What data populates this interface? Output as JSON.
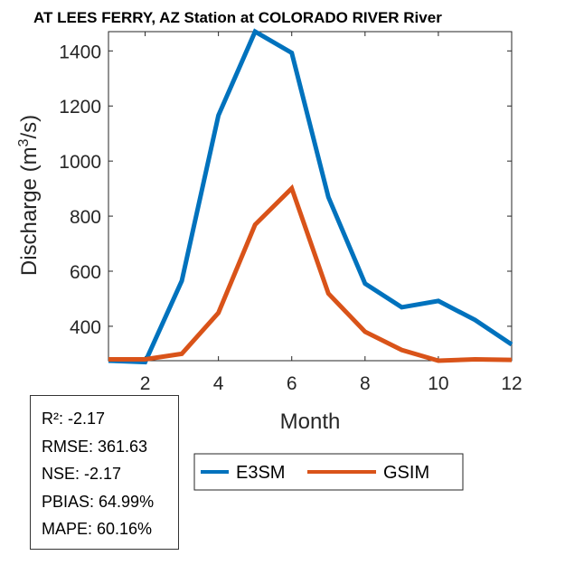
{
  "chart_data": {
    "type": "line",
    "title": "AT LEES FERRY, AZ  Station at  COLORADO RIVER  River",
    "xlabel": "Month",
    "ylabel": "Discharge (m³/s)",
    "ylabel_parts": {
      "pre": "Discharge (m",
      "sup": "3",
      "post": "/s)"
    },
    "x": [
      1,
      2,
      3,
      4,
      5,
      6,
      7,
      8,
      9,
      10,
      11,
      12
    ],
    "xlim": [
      1,
      12
    ],
    "ylim": [
      275,
      1470
    ],
    "xticks": [
      2,
      4,
      6,
      8,
      10,
      12
    ],
    "yticks": [
      400,
      600,
      800,
      1000,
      1200,
      1400
    ],
    "grid": false,
    "legend_placement": "bottom",
    "series": [
      {
        "name": "E3SM",
        "color": "#0072BD",
        "values": [
          275,
          270,
          565,
          1166,
          1470,
          1393,
          869,
          555,
          469,
          492,
          423,
          334
        ]
      },
      {
        "name": "GSIM",
        "color": "#D95319",
        "values": [
          280,
          280,
          300,
          449,
          769,
          901,
          519,
          380,
          314,
          275,
          280,
          278
        ]
      }
    ]
  },
  "stats": {
    "r2": "R²: -2.17",
    "rmse": "RMSE: 361.63",
    "nse": "NSE: -2.17",
    "pbias": "PBIAS: 64.99%",
    "mape": "MAPE: 60.16%"
  }
}
